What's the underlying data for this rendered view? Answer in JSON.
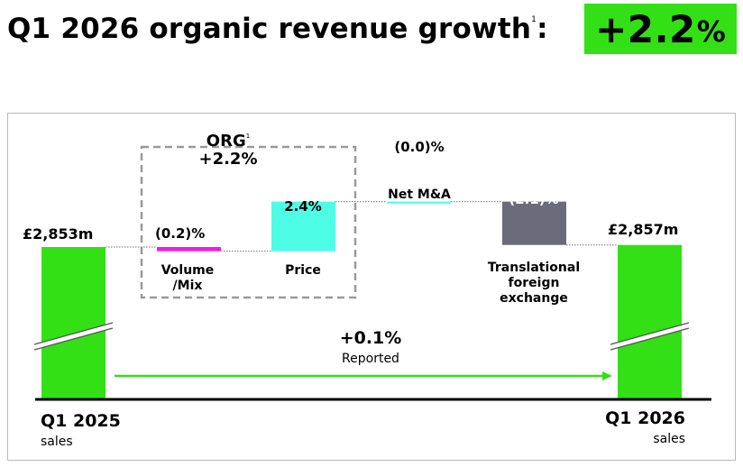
{
  "title": {
    "text": "Q1 2026 organic revenue growth",
    "footnote": "1",
    "colon": ":",
    "badge_value": "+2.2",
    "badge_unit": "%"
  },
  "colors": {
    "brand_green": "#33e015",
    "volume_mix": "#f31be6",
    "price": "#4efde6",
    "net_ma": "#4efde6",
    "fx": "#6b6b7a",
    "arrow": "#33e015"
  },
  "org_box": {
    "label": "ORG",
    "footnote": "1",
    "value": "+2.2%"
  },
  "reported": {
    "value": "+0.1%",
    "label": "Reported"
  },
  "chart_data": {
    "type": "bar",
    "subtype": "waterfall",
    "unit": "£m",
    "axis_break": true,
    "categories": [
      "Q1 2025 sales",
      "Volume /Mix",
      "Price",
      "Net M&A",
      "Translational foreign exchange",
      "Q1 2026 sales"
    ],
    "bars": [
      {
        "key": "start",
        "kind": "total",
        "value": 2853,
        "label": "£2,853m",
        "category": "Q1 2025",
        "sublabel": "sales"
      },
      {
        "key": "volume_mix",
        "kind": "delta",
        "pct": -0.2,
        "label": "(0.2)%",
        "category": "Volume\n/Mix"
      },
      {
        "key": "price",
        "kind": "delta",
        "pct": 2.4,
        "label": "2.4%",
        "category": "Price"
      },
      {
        "key": "net_ma",
        "kind": "delta",
        "pct": 0.0,
        "label": "(0.0)%",
        "category": "Net M&A"
      },
      {
        "key": "fx",
        "kind": "delta",
        "pct": -2.1,
        "label": "(2.1)%",
        "category": "Translational\nforeign\nexchange"
      },
      {
        "key": "end",
        "kind": "total",
        "value": 2857,
        "label": "£2,857m",
        "category": "Q1 2026",
        "sublabel": "sales"
      }
    ]
  }
}
